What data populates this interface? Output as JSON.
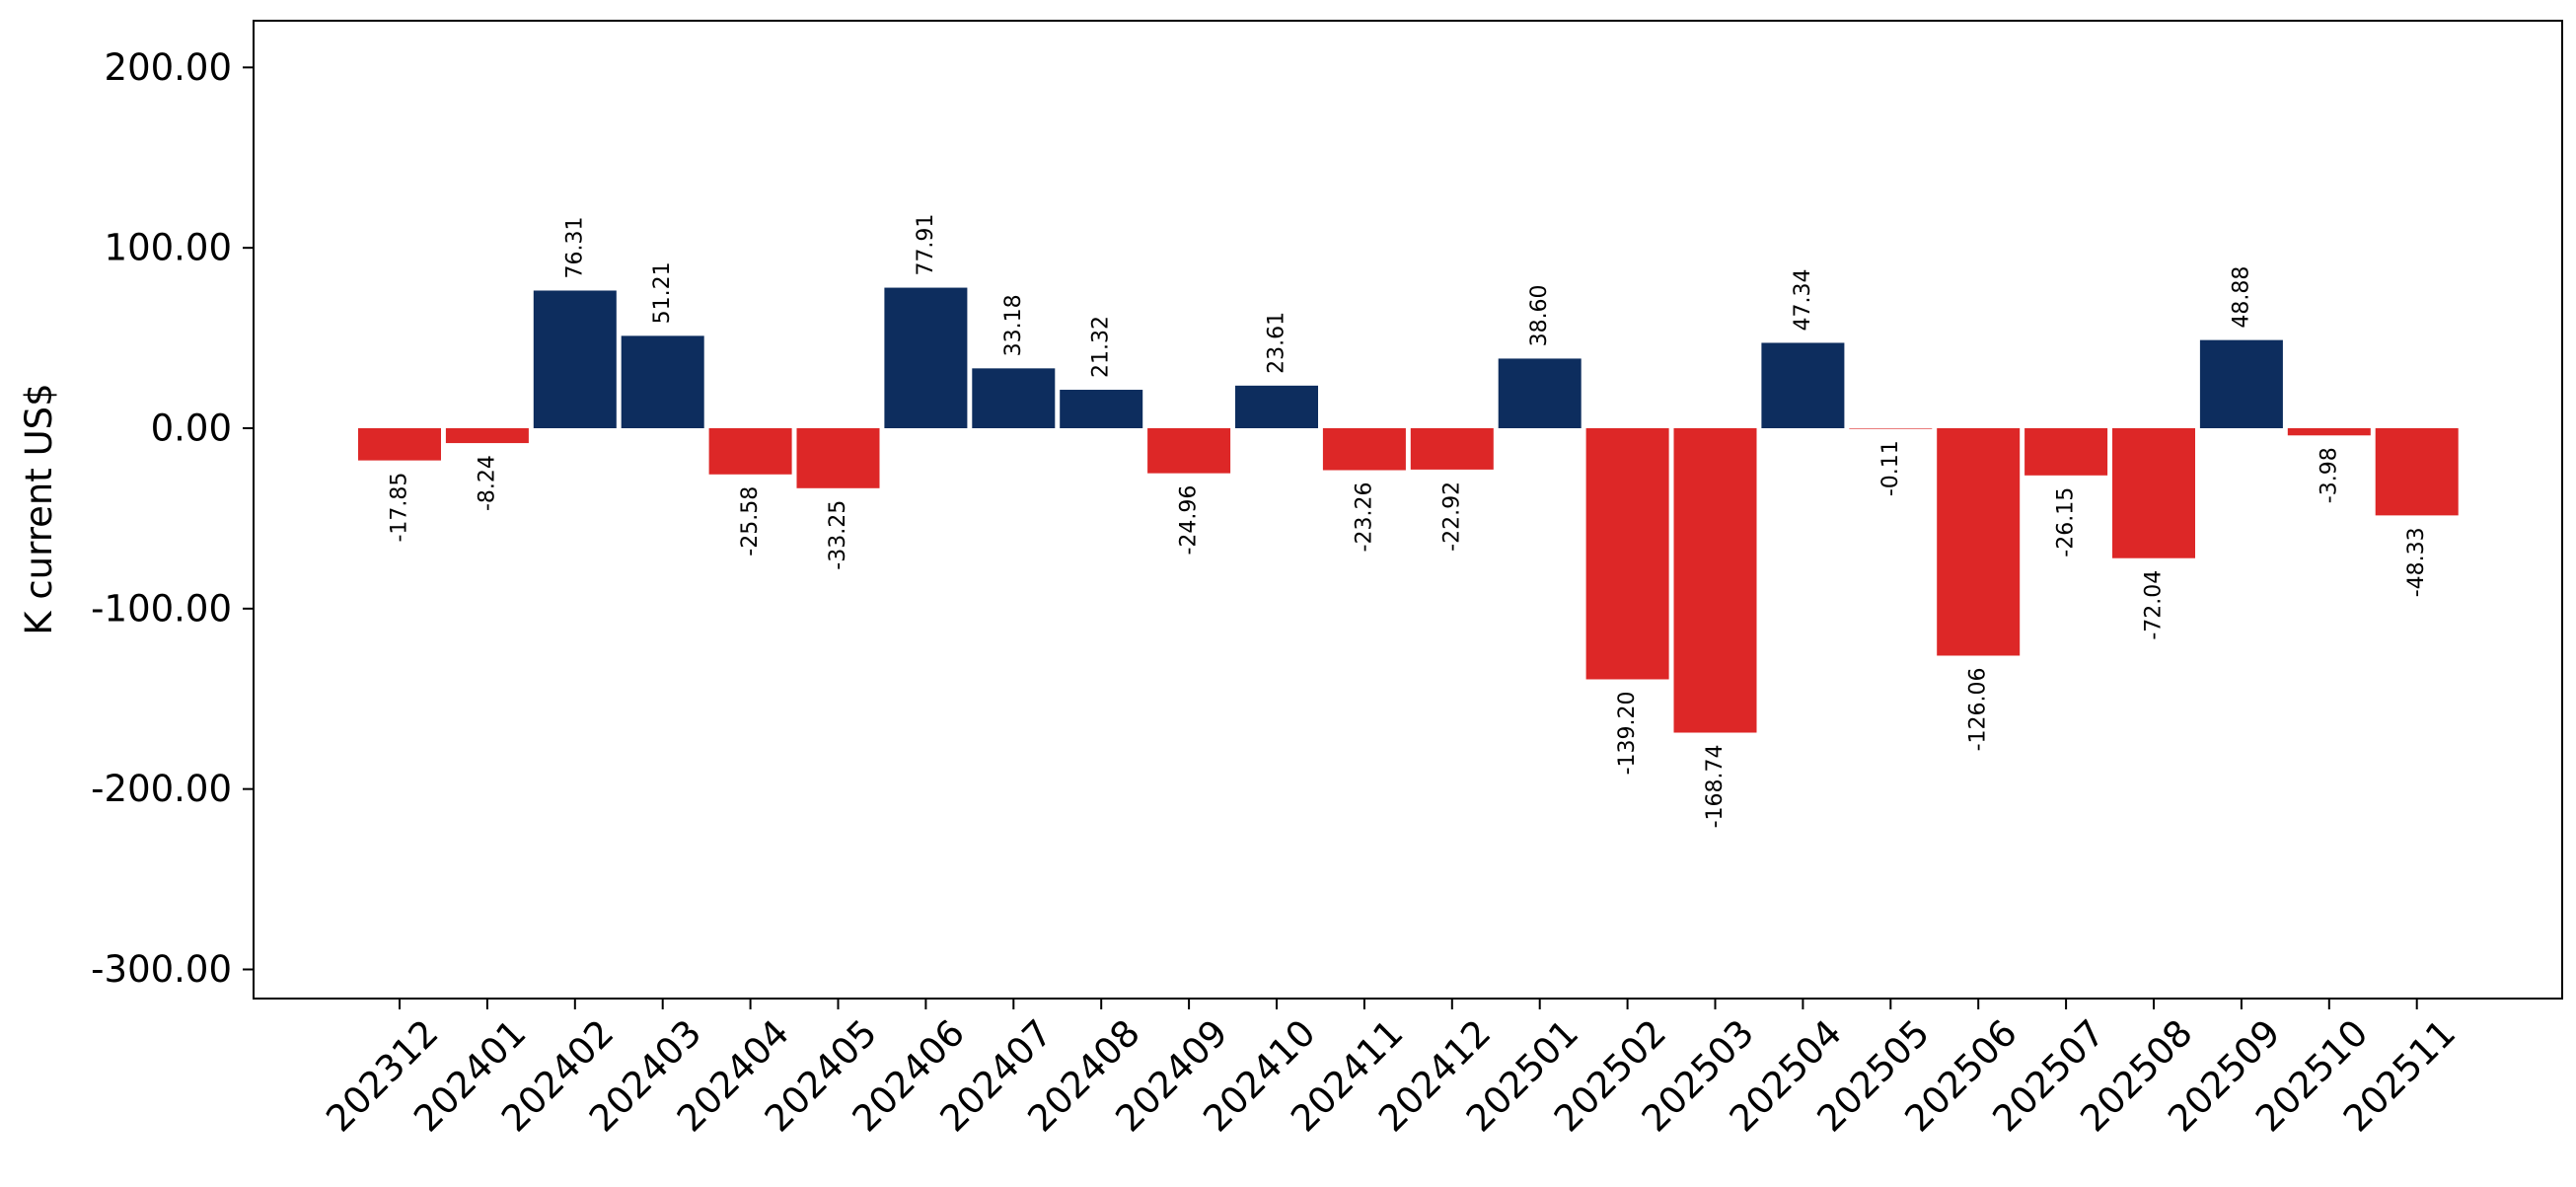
{
  "chart_data": {
    "type": "bar",
    "title": "",
    "xlabel": "",
    "ylabel": "K current US$",
    "ylim": [
      -317,
      227
    ],
    "yticks": [
      200,
      100,
      0,
      -100,
      -200,
      -300
    ],
    "ytick_labels": [
      "200.00",
      "100.00",
      "0.00",
      "-100.00",
      "-200.00",
      "-300.00"
    ],
    "grid": false,
    "legend": "none",
    "categories": [
      "202312",
      "202401",
      "202402",
      "202403",
      "202404",
      "202405",
      "202406",
      "202407",
      "202408",
      "202409",
      "202410",
      "202411",
      "202412",
      "202501",
      "202502",
      "202503",
      "202504",
      "202505",
      "202506",
      "202507",
      "202508",
      "202509",
      "202510",
      "202511"
    ],
    "values": [
      -17.85,
      -8.24,
      76.31,
      51.21,
      -25.58,
      -33.25,
      77.91,
      33.18,
      21.32,
      -24.96,
      23.61,
      -23.26,
      -22.92,
      38.6,
      -139.2,
      -168.74,
      47.34,
      -0.11,
      -126.06,
      -26.15,
      -72.04,
      48.88,
      -3.98,
      -48.33
    ],
    "value_labels": [
      "-17.85",
      "-8.24",
      "76.31",
      "51.21",
      "-25.58",
      "-33.25",
      "77.91",
      "33.18",
      "21.32",
      "-24.96",
      "23.61",
      "-23.26",
      "-22.92",
      "38.60",
      "-139.20",
      "-168.74",
      "47.34",
      "-0.11",
      "-126.06",
      "-26.15",
      "-72.04",
      "48.88",
      "-3.98",
      "-48.33"
    ],
    "colors": {
      "positive": "#0d2d5e",
      "negative": "#dd2727",
      "axes": "#000000"
    }
  }
}
